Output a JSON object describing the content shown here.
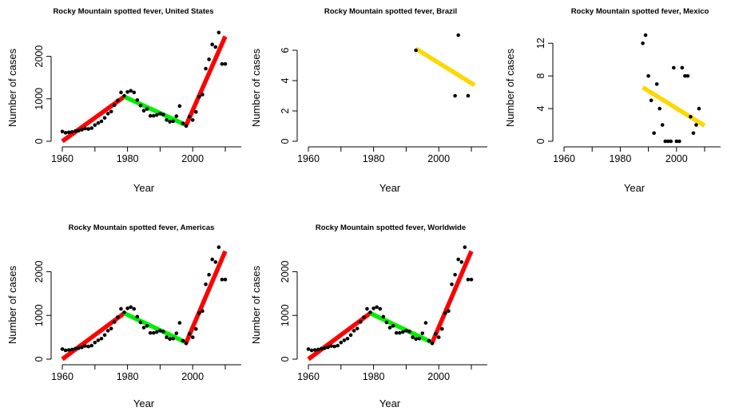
{
  "chart_data": [
    {
      "type": "scatter",
      "title": "Rocky Mountain spotted fever, United States",
      "xlabel": "Year",
      "ylabel": "Number of cases",
      "xlim": [
        1960,
        2010
      ],
      "ylim": [
        0,
        2500
      ],
      "xticks": [
        "1960",
        "1980",
        "2000"
      ],
      "yticks": [
        "0",
        "1000",
        "2000"
      ],
      "points": [
        [
          1960,
          230
        ],
        [
          1961,
          200
        ],
        [
          1962,
          210
        ],
        [
          1963,
          220
        ],
        [
          1964,
          240
        ],
        [
          1965,
          250
        ],
        [
          1966,
          270
        ],
        [
          1967,
          300
        ],
        [
          1968,
          290
        ],
        [
          1969,
          310
        ],
        [
          1970,
          380
        ],
        [
          1971,
          430
        ],
        [
          1972,
          470
        ],
        [
          1973,
          550
        ],
        [
          1974,
          650
        ],
        [
          1975,
          700
        ],
        [
          1976,
          850
        ],
        [
          1977,
          960
        ],
        [
          1978,
          1150
        ],
        [
          1979,
          1070
        ],
        [
          1980,
          1160
        ],
        [
          1981,
          1190
        ],
        [
          1982,
          1150
        ],
        [
          1983,
          970
        ],
        [
          1984,
          840
        ],
        [
          1985,
          720
        ],
        [
          1986,
          760
        ],
        [
          1987,
          600
        ],
        [
          1988,
          600
        ],
        [
          1989,
          620
        ],
        [
          1990,
          650
        ],
        [
          1991,
          630
        ],
        [
          1992,
          500
        ],
        [
          1993,
          460
        ],
        [
          1994,
          470
        ],
        [
          1995,
          590
        ],
        [
          1996,
          830
        ],
        [
          1997,
          420
        ],
        [
          1998,
          360
        ],
        [
          1999,
          580
        ],
        [
          2000,
          500
        ],
        [
          2001,
          690
        ],
        [
          2002,
          1050
        ],
        [
          2003,
          1100
        ],
        [
          2004,
          1710
        ],
        [
          2005,
          1930
        ],
        [
          2006,
          2280
        ],
        [
          2007,
          2220
        ],
        [
          2008,
          2560
        ],
        [
          2009,
          1820
        ],
        [
          2010,
          1820
        ]
      ],
      "segments": [
        {
          "color": "#ff0000",
          "x": [
            1960,
            1979
          ],
          "y": [
            0,
            1050
          ]
        },
        {
          "color": "#00ee00",
          "x": [
            1979,
            1998
          ],
          "y": [
            1050,
            380
          ]
        },
        {
          "color": "#ff0000",
          "x": [
            1998,
            2010
          ],
          "y": [
            380,
            2470
          ]
        }
      ]
    },
    {
      "type": "scatter",
      "title": "Rocky Mountain spotted fever, Brazil",
      "xlabel": "Year",
      "ylabel": "Number of cases",
      "xlim": [
        1960,
        2010
      ],
      "ylim": [
        0,
        7
      ],
      "xticks": [
        "1960",
        "1980",
        "2000"
      ],
      "yticks": [
        "0",
        "2",
        "4",
        "6"
      ],
      "points": [
        [
          1993,
          6
        ],
        [
          2005,
          3
        ],
        [
          2006,
          7
        ],
        [
          2009,
          3
        ]
      ],
      "segments": [
        {
          "color": "#ffd700",
          "x": [
            1993,
            2011
          ],
          "y": [
            6.1,
            3.7
          ]
        }
      ]
    },
    {
      "type": "scatter",
      "title": "Rocky Mountain spotted fever, Mexico",
      "xlabel": "Year",
      "ylabel": "Number of cases",
      "xlim": [
        1960,
        2010
      ],
      "ylim": [
        0,
        13
      ],
      "xticks": [
        "1960",
        "1980",
        "2000"
      ],
      "yticks": [
        "0",
        "4",
        "8",
        "12"
      ],
      "points": [
        [
          1988,
          12
        ],
        [
          1989,
          13
        ],
        [
          1990,
          8
        ],
        [
          1991,
          5
        ],
        [
          1992,
          1
        ],
        [
          1993,
          7
        ],
        [
          1994,
          4
        ],
        [
          1995,
          2
        ],
        [
          1996,
          0
        ],
        [
          1997,
          0
        ],
        [
          1998,
          0
        ],
        [
          1999,
          9
        ],
        [
          2000,
          0
        ],
        [
          2001,
          0
        ],
        [
          2002,
          9
        ],
        [
          2003,
          8
        ],
        [
          2004,
          8
        ],
        [
          2005,
          3
        ],
        [
          2006,
          1
        ],
        [
          2007,
          2
        ],
        [
          2008,
          4
        ]
      ],
      "segments": [
        {
          "color": "#ffd700",
          "x": [
            1988,
            2010
          ],
          "y": [
            6.6,
            1.9
          ]
        }
      ]
    },
    {
      "type": "scatter",
      "title": "Rocky Mountain spotted fever, Americas",
      "xlabel": "Year",
      "ylabel": "Number of cases",
      "xlim": [
        1960,
        2010
      ],
      "ylim": [
        0,
        2500
      ],
      "xticks": [
        "1960",
        "1980",
        "2000"
      ],
      "yticks": [
        "0",
        "1000",
        "2000"
      ],
      "points": [
        [
          1960,
          230
        ],
        [
          1961,
          200
        ],
        [
          1962,
          210
        ],
        [
          1963,
          220
        ],
        [
          1964,
          240
        ],
        [
          1965,
          250
        ],
        [
          1966,
          270
        ],
        [
          1967,
          300
        ],
        [
          1968,
          290
        ],
        [
          1969,
          310
        ],
        [
          1970,
          380
        ],
        [
          1971,
          430
        ],
        [
          1972,
          470
        ],
        [
          1973,
          550
        ],
        [
          1974,
          650
        ],
        [
          1975,
          700
        ],
        [
          1976,
          850
        ],
        [
          1977,
          960
        ],
        [
          1978,
          1150
        ],
        [
          1979,
          1070
        ],
        [
          1980,
          1160
        ],
        [
          1981,
          1190
        ],
        [
          1982,
          1150
        ],
        [
          1983,
          970
        ],
        [
          1984,
          840
        ],
        [
          1985,
          720
        ],
        [
          1986,
          760
        ],
        [
          1987,
          600
        ],
        [
          1988,
          600
        ],
        [
          1989,
          620
        ],
        [
          1990,
          650
        ],
        [
          1991,
          630
        ],
        [
          1992,
          500
        ],
        [
          1993,
          460
        ],
        [
          1994,
          470
        ],
        [
          1995,
          590
        ],
        [
          1996,
          830
        ],
        [
          1997,
          420
        ],
        [
          1998,
          360
        ],
        [
          1999,
          580
        ],
        [
          2000,
          500
        ],
        [
          2001,
          690
        ],
        [
          2002,
          1050
        ],
        [
          2003,
          1100
        ],
        [
          2004,
          1710
        ],
        [
          2005,
          1930
        ],
        [
          2006,
          2280
        ],
        [
          2007,
          2220
        ],
        [
          2008,
          2560
        ],
        [
          2009,
          1820
        ],
        [
          2010,
          1820
        ]
      ],
      "segments": [
        {
          "color": "#ff0000",
          "x": [
            1960,
            1979
          ],
          "y": [
            0,
            1050
          ]
        },
        {
          "color": "#00ee00",
          "x": [
            1979,
            1998
          ],
          "y": [
            1050,
            380
          ]
        },
        {
          "color": "#ff0000",
          "x": [
            1998,
            2010
          ],
          "y": [
            380,
            2470
          ]
        }
      ]
    },
    {
      "type": "scatter",
      "title": "Rocky Mountain spotted fever, Worldwide",
      "xlabel": "Year",
      "ylabel": "Number of cases",
      "xlim": [
        1960,
        2010
      ],
      "ylim": [
        0,
        2500
      ],
      "xticks": [
        "1960",
        "1980",
        "2000"
      ],
      "yticks": [
        "0",
        "1000",
        "2000"
      ],
      "points": [
        [
          1960,
          230
        ],
        [
          1961,
          200
        ],
        [
          1962,
          210
        ],
        [
          1963,
          220
        ],
        [
          1964,
          240
        ],
        [
          1965,
          250
        ],
        [
          1966,
          270
        ],
        [
          1967,
          300
        ],
        [
          1968,
          290
        ],
        [
          1969,
          310
        ],
        [
          1970,
          380
        ],
        [
          1971,
          430
        ],
        [
          1972,
          470
        ],
        [
          1973,
          550
        ],
        [
          1974,
          650
        ],
        [
          1975,
          700
        ],
        [
          1976,
          850
        ],
        [
          1977,
          960
        ],
        [
          1978,
          1150
        ],
        [
          1979,
          1070
        ],
        [
          1980,
          1160
        ],
        [
          1981,
          1190
        ],
        [
          1982,
          1150
        ],
        [
          1983,
          970
        ],
        [
          1984,
          840
        ],
        [
          1985,
          720
        ],
        [
          1986,
          760
        ],
        [
          1987,
          600
        ],
        [
          1988,
          600
        ],
        [
          1989,
          620
        ],
        [
          1990,
          650
        ],
        [
          1991,
          630
        ],
        [
          1992,
          500
        ],
        [
          1993,
          460
        ],
        [
          1994,
          470
        ],
        [
          1995,
          590
        ],
        [
          1996,
          830
        ],
        [
          1997,
          420
        ],
        [
          1998,
          360
        ],
        [
          1999,
          580
        ],
        [
          2000,
          500
        ],
        [
          2001,
          690
        ],
        [
          2002,
          1050
        ],
        [
          2003,
          1100
        ],
        [
          2004,
          1710
        ],
        [
          2005,
          1930
        ],
        [
          2006,
          2280
        ],
        [
          2007,
          2220
        ],
        [
          2008,
          2560
        ],
        [
          2009,
          1820
        ],
        [
          2010,
          1820
        ]
      ],
      "segments": [
        {
          "color": "#ff0000",
          "x": [
            1960,
            1979
          ],
          "y": [
            0,
            1050
          ]
        },
        {
          "color": "#00ee00",
          "x": [
            1979,
            1998
          ],
          "y": [
            1050,
            380
          ]
        },
        {
          "color": "#ff0000",
          "x": [
            1998,
            2010
          ],
          "y": [
            380,
            2470
          ]
        }
      ]
    }
  ]
}
